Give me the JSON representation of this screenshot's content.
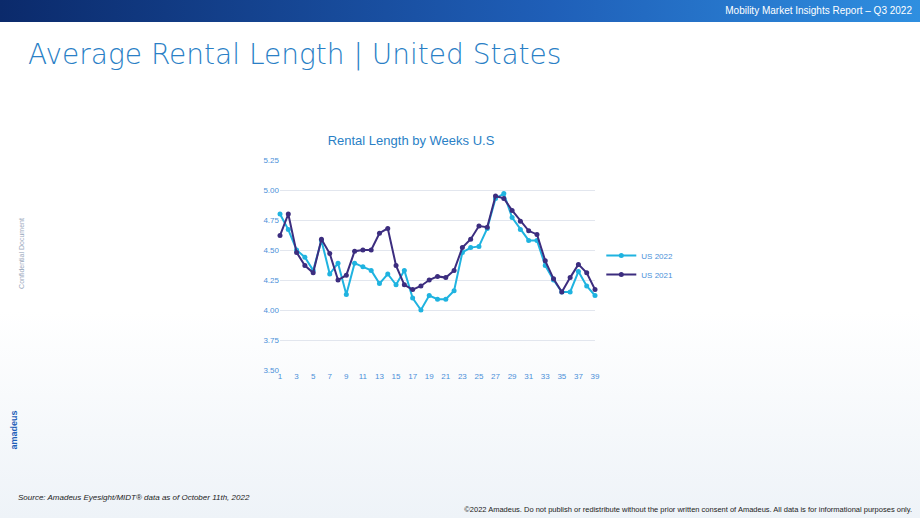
{
  "header": "Mobility Market Insights Report – Q3 2022",
  "page_title": "Average Rental Length | United States",
  "side_note": "Confidential Document",
  "logo": "amadeus",
  "source": "Source: Amadeus Eyesight/MIDT® data as of October 11th, 2022",
  "copyright": "©2022 Amadeus. Do not publish or redistribute without the prior written consent of Amadeus. All data is for informational purposes only.",
  "chart_data": {
    "type": "line",
    "title": "Rental Length by Weeks U.S",
    "x": [
      1,
      2,
      3,
      4,
      5,
      6,
      7,
      8,
      9,
      10,
      11,
      12,
      13,
      14,
      15,
      16,
      17,
      18,
      19,
      20,
      21,
      22,
      23,
      24,
      25,
      26,
      27,
      28,
      29,
      30,
      31,
      32,
      33,
      34,
      35,
      36,
      37,
      38,
      39
    ],
    "series": [
      {
        "name": "US 2022",
        "color": "#1fb3e0",
        "marker": "circle",
        "line_style": "solid",
        "values": [
          4.8,
          4.67,
          4.5,
          4.44,
          4.33,
          4.58,
          4.3,
          4.39,
          4.13,
          4.39,
          4.36,
          4.33,
          4.22,
          4.3,
          4.21,
          4.33,
          4.1,
          4.0,
          4.12,
          4.09,
          4.09,
          4.16,
          4.48,
          4.52,
          4.53,
          4.68,
          4.93,
          4.97,
          4.77,
          4.67,
          4.58,
          4.58,
          4.37,
          4.25,
          4.15,
          4.15,
          4.32,
          4.2,
          4.12
        ]
      },
      {
        "name": "US 2021",
        "color": "#3c2d7f",
        "marker": "circle",
        "line_style": "solid",
        "values": [
          4.62,
          4.8,
          4.48,
          4.37,
          4.31,
          4.59,
          4.47,
          4.25,
          4.29,
          4.49,
          4.5,
          4.5,
          4.64,
          4.68,
          4.37,
          4.21,
          4.17,
          4.2,
          4.25,
          4.28,
          4.27,
          4.33,
          4.52,
          4.59,
          4.7,
          4.69,
          4.95,
          4.93,
          4.83,
          4.74,
          4.66,
          4.63,
          4.41,
          4.26,
          4.15,
          4.27,
          4.38,
          4.31,
          4.17
        ]
      }
    ],
    "xlim": [
      1,
      39
    ],
    "xticks": [
      1,
      3,
      5,
      7,
      9,
      11,
      13,
      15,
      17,
      19,
      21,
      23,
      25,
      27,
      29,
      31,
      33,
      35,
      37,
      39
    ],
    "ylim": [
      3.5,
      5.25
    ],
    "yticks": [
      {
        "value": 3.5,
        "label": "3.50"
      },
      {
        "value": 3.75,
        "label": "3.75"
      },
      {
        "value": 4,
        "label": "4.00"
      },
      {
        "value": 4.25,
        "label": "4.25"
      },
      {
        "value": 4.5,
        "label": "4.50"
      },
      {
        "value": 4.75,
        "label": "4.75"
      },
      {
        "value": 5,
        "label": "5.00"
      },
      {
        "value": 5.25,
        "label": "5.25"
      }
    ],
    "grid": true,
    "legend": "right"
  }
}
